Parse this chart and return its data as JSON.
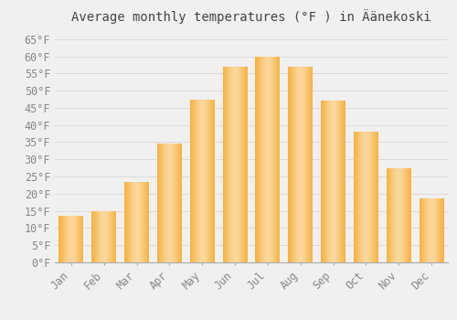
{
  "title": "Average monthly temperatures (°F ) in Äänekoski",
  "months": [
    "Jan",
    "Feb",
    "Mar",
    "Apr",
    "May",
    "Jun",
    "Jul",
    "Aug",
    "Sep",
    "Oct",
    "Nov",
    "Dec"
  ],
  "values": [
    13.5,
    15,
    23.5,
    34.5,
    47.5,
    57,
    60,
    57,
    47,
    38,
    27.5,
    18.5
  ],
  "bar_color_bottom": "#F5A623",
  "bar_color_mid": "#FDD05A",
  "bar_color_top": "#F5A623",
  "background_color": "#f0f0f0",
  "ylim": [
    0,
    68
  ],
  "yticks": [
    0,
    5,
    10,
    15,
    20,
    25,
    30,
    35,
    40,
    45,
    50,
    55,
    60,
    65
  ],
  "grid_color": "#d8d8d8",
  "title_fontsize": 10,
  "tick_fontsize": 8.5,
  "tick_color": "#888888"
}
